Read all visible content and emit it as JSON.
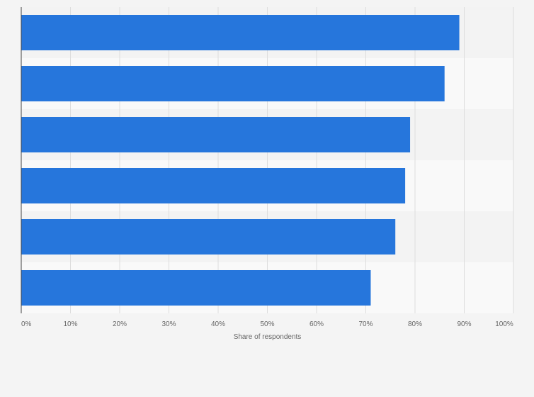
{
  "chart_data": {
    "type": "bar",
    "orientation": "horizontal",
    "categories": [
      "",
      "",
      "",
      "",
      "",
      ""
    ],
    "values": [
      89,
      86,
      79,
      78,
      76,
      71
    ],
    "xlabel": "Share of respondents",
    "ylabel": "",
    "xlim": [
      0,
      100
    ],
    "xticks": [
      "0%",
      "10%",
      "20%",
      "30%",
      "40%",
      "50%",
      "60%",
      "70%",
      "80%",
      "90%",
      "100%"
    ],
    "grid": true,
    "legend": "none",
    "colors": {
      "bar": "#2676dc",
      "band_light": "#f9f9f9",
      "band_dark": "#f3f3f3",
      "grid": "#dddddd",
      "axis": "#444444",
      "text": "#666666"
    }
  }
}
